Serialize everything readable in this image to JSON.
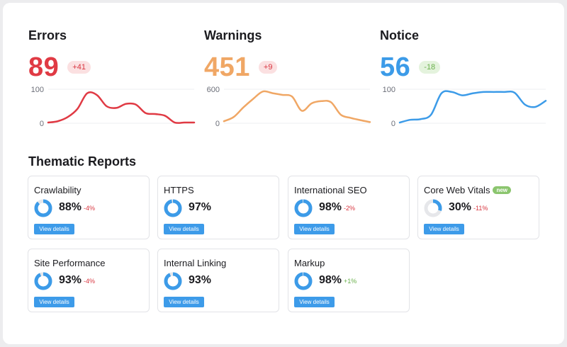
{
  "metrics": [
    {
      "title": "Errors",
      "value": "89",
      "delta": "+41",
      "color": "#e03a44",
      "badge_bg": "#fbe0e1",
      "badge_color": "#d8353f",
      "ymax": "100",
      "ymin": "0",
      "series": [
        2,
        6,
        18,
        42,
        88,
        83,
        50,
        45,
        57,
        55,
        30,
        27,
        22,
        2,
        2,
        2
      ]
    },
    {
      "title": "Warnings",
      "value": "451",
      "delta": "+9",
      "color": "#f0a765",
      "badge_bg": "#fbe0e1",
      "badge_color": "#d8353f",
      "ymax": "600",
      "ymin": "0",
      "series": [
        35,
        110,
        280,
        430,
        560,
        530,
        500,
        470,
        220,
        350,
        390,
        370,
        150,
        95,
        55,
        20
      ]
    },
    {
      "title": "Notice",
      "value": "56",
      "delta": "-18",
      "color": "#3c9be8",
      "badge_bg": "#e4f3dd",
      "badge_color": "#6ab04c",
      "ymax": "100",
      "ymin": "0",
      "series": [
        2,
        10,
        12,
        25,
        88,
        92,
        82,
        88,
        92,
        92,
        92,
        90,
        55,
        48,
        66
      ]
    }
  ],
  "section_title": "Thematic Reports",
  "view_details_label": "View details",
  "cards": [
    {
      "name": "Crawlability",
      "pct": "88%",
      "delta": "-4%",
      "delta_color": "#d8353f",
      "fraction": 0.88,
      "badge": ""
    },
    {
      "name": "HTTPS",
      "pct": "97%",
      "delta": "",
      "delta_color": "#d8353f",
      "fraction": 0.97,
      "badge": ""
    },
    {
      "name": "International SEO",
      "pct": "98%",
      "delta": "-2%",
      "delta_color": "#d8353f",
      "fraction": 0.98,
      "badge": ""
    },
    {
      "name": "Core Web Vitals",
      "pct": "30%",
      "delta": "-11%",
      "delta_color": "#d8353f",
      "fraction": 0.3,
      "badge": "new"
    },
    {
      "name": "Site Performance",
      "pct": "93%",
      "delta": "-4%",
      "delta_color": "#d8353f",
      "fraction": 0.93,
      "badge": ""
    },
    {
      "name": "Internal Linking",
      "pct": "93%",
      "delta": "",
      "delta_color": "#d8353f",
      "fraction": 0.93,
      "badge": ""
    },
    {
      "name": "Markup",
      "pct": "98%",
      "delta": "+1%",
      "delta_color": "#6ab04c",
      "fraction": 0.98,
      "badge": ""
    }
  ],
  "colors": {
    "donut_fill": "#3c9be8",
    "donut_track": "#e6e7ea",
    "button": "#3d9be9"
  }
}
